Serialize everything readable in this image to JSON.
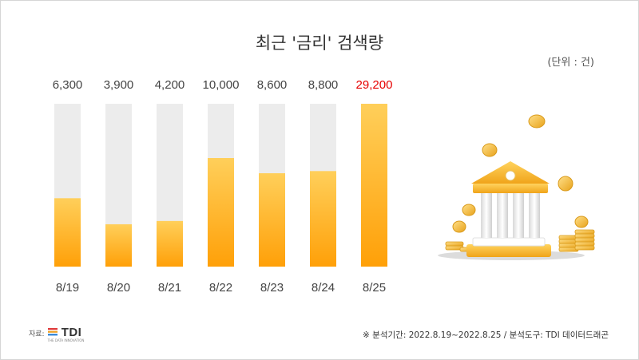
{
  "title": "최근 '금리' 검색량",
  "unit_label": "(단위 : 건)",
  "footnote": "※ 분석기간: 2022.8.19~2022.8.25  / 분석도구: TDI 데이터드래곤",
  "source": {
    "label": "자료:",
    "logo_text": "TDI",
    "logo_subtext": "THE DATA INNOVATION"
  },
  "colors": {
    "bar_top": "#ffcf5a",
    "bar_bottom": "#ffa008",
    "track": "#ececec",
    "label": "#444444",
    "highlight": "#e60000"
  },
  "chart_data": {
    "type": "bar",
    "title": "최근 '금리' 검색량",
    "categories": [
      "8/19",
      "8/20",
      "8/21",
      "8/22",
      "8/23",
      "8/24",
      "8/25"
    ],
    "values": [
      6300,
      3900,
      4200,
      10000,
      8600,
      8800,
      29200
    ],
    "value_labels": [
      "6,300",
      "3,900",
      "4,200",
      "10,000",
      "8,600",
      "8,800",
      "29,200"
    ],
    "highlight_index": 6,
    "ylim": [
      0,
      15000
    ],
    "grid": false,
    "legend": "none"
  },
  "illustration": {
    "icon": "bank-with-coins-icon"
  }
}
